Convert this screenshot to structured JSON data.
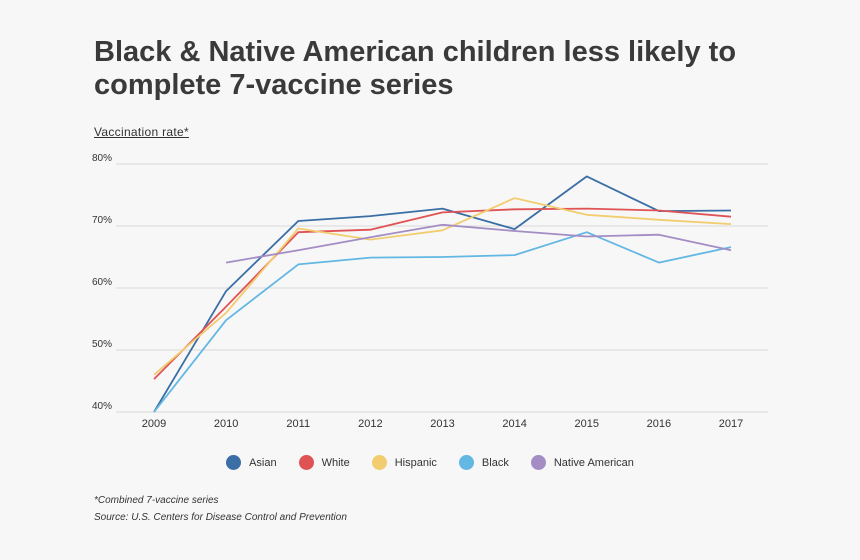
{
  "header": {
    "title": "Black & Native American children less likely to complete 7-vaccine series"
  },
  "footer": {
    "note": "*Combined 7-vaccine series",
    "source": "Source: U.S. Centers for Disease Control and Prevention"
  },
  "chart_data": {
    "type": "line",
    "title": "Black & Native American children less likely to complete 7-vaccine series",
    "ylabel": "Vaccination rate*",
    "xlabel": "",
    "x": [
      "2009",
      "2010",
      "2011",
      "2012",
      "2013",
      "2014",
      "2015",
      "2016",
      "2017"
    ],
    "ylim": [
      40,
      80
    ],
    "yticks": [
      40,
      50,
      60,
      70,
      80
    ],
    "ytick_labels": [
      "40%",
      "50%",
      "60%",
      "70%",
      "80%"
    ],
    "grid": true,
    "legend_position": "bottom",
    "series": [
      {
        "name": "Asian",
        "color": "#3a6ea5",
        "values": [
          40.0,
          59.5,
          70.8,
          71.6,
          72.8,
          69.5,
          78.0,
          72.4,
          72.5
        ]
      },
      {
        "name": "White",
        "color": "#e05355",
        "values": [
          45.3,
          57.0,
          69.0,
          69.4,
          72.2,
          72.7,
          72.8,
          72.5,
          71.5
        ]
      },
      {
        "name": "Hispanic",
        "color": "#f2cd6f",
        "values": [
          46.0,
          56.0,
          69.6,
          67.8,
          69.3,
          74.5,
          71.8,
          71.0,
          70.3
        ]
      },
      {
        "name": "Black",
        "color": "#62b7e3",
        "values": [
          40.0,
          54.8,
          63.8,
          64.9,
          65.0,
          65.3,
          69.0,
          64.1,
          66.6
        ]
      },
      {
        "name": "Native American",
        "color": "#a38dc4",
        "values": [
          null,
          64.1,
          66.1,
          68.2,
          70.2,
          69.2,
          68.3,
          68.6,
          66.1
        ]
      }
    ]
  }
}
